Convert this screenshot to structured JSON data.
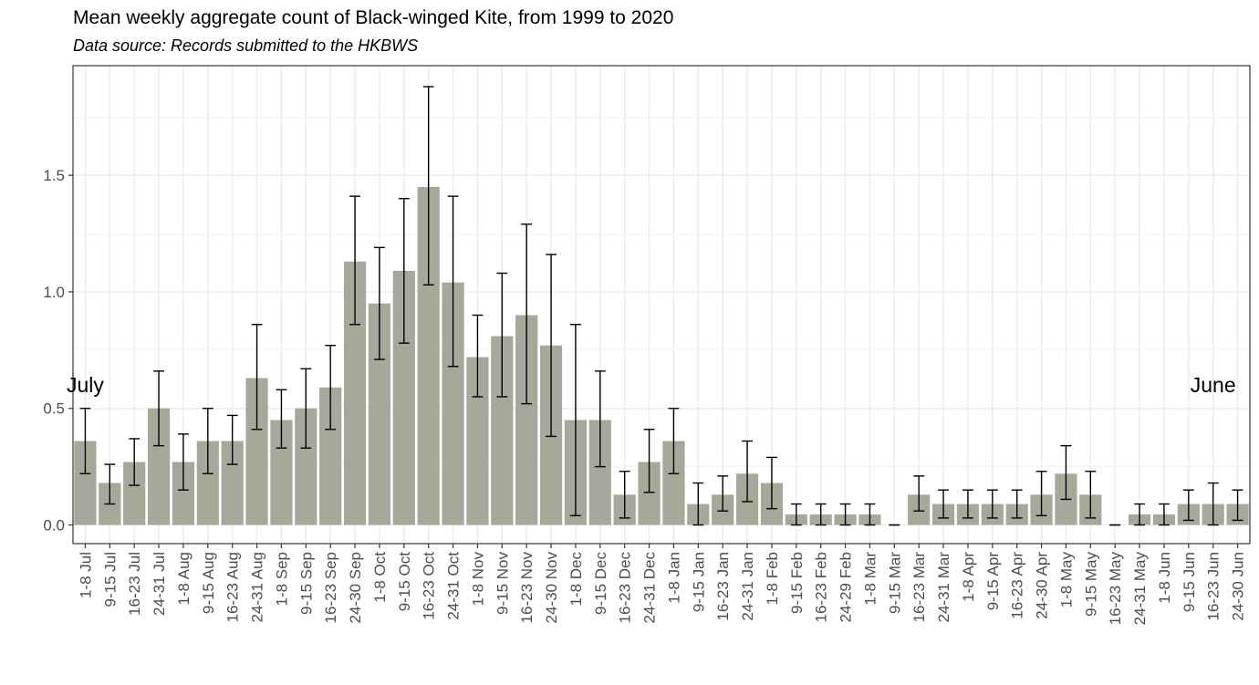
{
  "title": "Mean weekly aggregate count of Black-winged Kite, from 1999 to 2020",
  "subtitle": "Data source: Records submitted to the HKBWS",
  "chart_data": {
    "type": "bar",
    "title": "Mean weekly aggregate count of Black-winged Kite, from 1999 to 2020",
    "subtitle": "Data source: Records submitted to the HKBWS",
    "xlabel": "",
    "ylabel": "",
    "ylim": [
      -0.08,
      1.97
    ],
    "yticks": [
      0.0,
      0.5,
      1.0,
      1.5
    ],
    "ytick_labels": [
      "0.0",
      "0.5",
      "1.0",
      "1.5"
    ],
    "grid": true,
    "bar_color": "#a6a89a",
    "categories": [
      "1-8 Jul",
      "9-15 Jul",
      "16-23 Jul",
      "24-31 Jul",
      "1-8 Aug",
      "9-15 Aug",
      "16-23 Aug",
      "24-31 Aug",
      "1-8 Sep",
      "9-15 Sep",
      "16-23 Sep",
      "24-30 Sep",
      "1-8 Oct",
      "9-15 Oct",
      "16-23 Oct",
      "24-31 Oct",
      "1-8 Nov",
      "9-15 Nov",
      "16-23 Nov",
      "24-30 Nov",
      "1-8 Dec",
      "9-15 Dec",
      "16-23 Dec",
      "24-31 Dec",
      "1-8 Jan",
      "9-15 Jan",
      "16-23 Jan",
      "24-31 Jan",
      "1-8 Feb",
      "9-15 Feb",
      "16-23 Feb",
      "24-29 Feb",
      "1-8 Mar",
      "9-15 Mar",
      "16-23 Mar",
      "24-31 Mar",
      "1-8 Apr",
      "9-15 Apr",
      "16-23 Apr",
      "24-30 Apr",
      "1-8 May",
      "9-15 May",
      "16-23 May",
      "24-31 May",
      "1-8 Jun",
      "9-15 Jun",
      "16-23 Jun",
      "24-30 Jun"
    ],
    "values": [
      0.36,
      0.18,
      0.27,
      0.5,
      0.27,
      0.36,
      0.36,
      0.63,
      0.45,
      0.5,
      0.59,
      1.13,
      0.95,
      1.09,
      1.45,
      1.04,
      0.72,
      0.81,
      0.9,
      0.77,
      0.45,
      0.45,
      0.13,
      0.27,
      0.36,
      0.09,
      0.13,
      0.22,
      0.18,
      0.045,
      0.045,
      0.045,
      0.045,
      0.0,
      0.13,
      0.09,
      0.09,
      0.09,
      0.09,
      0.13,
      0.22,
      0.13,
      0.0,
      0.045,
      0.045,
      0.09,
      0.09,
      0.09
    ],
    "error_low": [
      0.22,
      0.09,
      0.17,
      0.34,
      0.15,
      0.22,
      0.26,
      0.41,
      0.33,
      0.33,
      0.41,
      0.86,
      0.71,
      0.78,
      1.03,
      0.68,
      0.55,
      0.55,
      0.52,
      0.38,
      0.04,
      0.25,
      0.03,
      0.14,
      0.22,
      0.0,
      0.06,
      0.1,
      0.07,
      0.0,
      0.0,
      0.0,
      0.0,
      0.0,
      0.06,
      0.03,
      0.03,
      0.03,
      0.03,
      0.04,
      0.11,
      0.03,
      0.0,
      0.0,
      0.0,
      0.02,
      0.0,
      0.02
    ],
    "error_high": [
      0.5,
      0.26,
      0.37,
      0.66,
      0.39,
      0.5,
      0.47,
      0.86,
      0.58,
      0.67,
      0.77,
      1.41,
      1.19,
      1.4,
      1.88,
      1.41,
      0.9,
      1.08,
      1.29,
      1.16,
      0.86,
      0.66,
      0.23,
      0.41,
      0.5,
      0.18,
      0.21,
      0.36,
      0.29,
      0.09,
      0.09,
      0.09,
      0.09,
      0.0,
      0.21,
      0.15,
      0.15,
      0.15,
      0.15,
      0.23,
      0.34,
      0.23,
      0.0,
      0.09,
      0.09,
      0.15,
      0.18,
      0.15
    ],
    "annotations": [
      {
        "text": "July",
        "category": "1-8 Jul",
        "y": 0.57
      },
      {
        "text": "June",
        "category": "16-23 Jun",
        "y": 0.57
      }
    ]
  }
}
